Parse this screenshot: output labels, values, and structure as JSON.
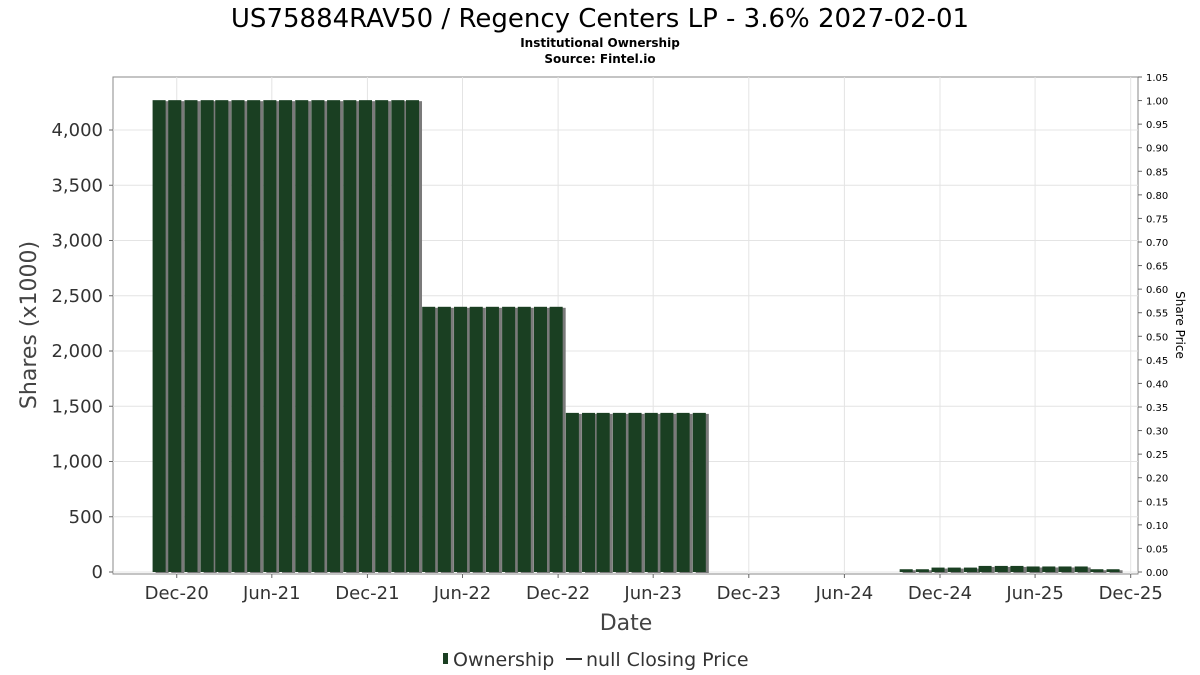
{
  "chart_data": {
    "type": "bar",
    "title": "US75884RAV50 / Regency Centers LP - 3.6% 2027-02-01",
    "subtitle": "Institutional Ownership",
    "source": "Source: Fintel.io",
    "xlabel": "Date",
    "ylabel": "Shares (x1000)",
    "ylabel_right": "Share Price",
    "x_ticks": [
      "Dec-20",
      "Jun-21",
      "Dec-21",
      "Jun-22",
      "Dec-22",
      "Jun-23",
      "Dec-23",
      "Jun-24",
      "Dec-24",
      "Jun-25",
      "Dec-25"
    ],
    "y_ticks": [
      "0",
      "500",
      "1,000",
      "1,500",
      "2,000",
      "2,500",
      "3,000",
      "3,500",
      "4,000"
    ],
    "ylim": [
      0,
      4500
    ],
    "y2_ticks": [
      "0.00",
      "0.05",
      "0.10",
      "0.15",
      "0.20",
      "0.25",
      "0.30",
      "0.35",
      "0.40",
      "0.45",
      "0.50",
      "0.55",
      "0.60",
      "0.65",
      "0.70",
      "0.75",
      "0.80",
      "0.85",
      "0.90",
      "0.95",
      "1.00",
      "1.05"
    ],
    "y2lim": [
      0,
      1.05
    ],
    "x_range": [
      "2020-08-01",
      "2025-12-15"
    ],
    "grid": true,
    "legend_placement": "bottom",
    "series": [
      {
        "name": "Ownership",
        "color": "#1a3f22",
        "points": [
          [
            "2020-10-31",
            4270
          ],
          [
            "2020-11-30",
            4270
          ],
          [
            "2020-12-31",
            4270
          ],
          [
            "2021-01-31",
            4270
          ],
          [
            "2021-02-28",
            4270
          ],
          [
            "2021-03-31",
            4270
          ],
          [
            "2021-04-30",
            4270
          ],
          [
            "2021-05-31",
            4270
          ],
          [
            "2021-06-30",
            4270
          ],
          [
            "2021-07-31",
            4270
          ],
          [
            "2021-08-31",
            4270
          ],
          [
            "2021-09-30",
            4270
          ],
          [
            "2021-10-31",
            4270
          ],
          [
            "2021-11-30",
            4270
          ],
          [
            "2021-12-31",
            4270
          ],
          [
            "2022-01-31",
            4270
          ],
          [
            "2022-02-28",
            4270
          ],
          [
            "2022-03-31",
            2400
          ],
          [
            "2022-04-30",
            2400
          ],
          [
            "2022-05-31",
            2400
          ],
          [
            "2022-06-30",
            2400
          ],
          [
            "2022-07-31",
            2400
          ],
          [
            "2022-08-31",
            2400
          ],
          [
            "2022-09-30",
            2400
          ],
          [
            "2022-10-31",
            2400
          ],
          [
            "2022-11-30",
            2400
          ],
          [
            "2022-12-31",
            1440
          ],
          [
            "2023-01-31",
            1440
          ],
          [
            "2023-02-28",
            1440
          ],
          [
            "2023-03-31",
            1440
          ],
          [
            "2023-04-30",
            1440
          ],
          [
            "2023-05-31",
            1440
          ],
          [
            "2023-06-30",
            1440
          ],
          [
            "2023-07-31",
            1440
          ],
          [
            "2023-08-31",
            1440
          ],
          [
            "2024-09-30",
            25
          ],
          [
            "2024-10-31",
            25
          ],
          [
            "2024-11-30",
            40
          ],
          [
            "2024-12-31",
            40
          ],
          [
            "2025-01-31",
            40
          ],
          [
            "2025-02-28",
            55
          ],
          [
            "2025-03-31",
            55
          ],
          [
            "2025-04-30",
            55
          ],
          [
            "2025-05-31",
            50
          ],
          [
            "2025-06-30",
            50
          ],
          [
            "2025-07-31",
            50
          ],
          [
            "2025-08-31",
            50
          ],
          [
            "2025-09-30",
            25
          ],
          [
            "2025-10-31",
            25
          ]
        ]
      },
      {
        "name": "null Closing Price",
        "color": "#333333",
        "points": []
      }
    ]
  }
}
